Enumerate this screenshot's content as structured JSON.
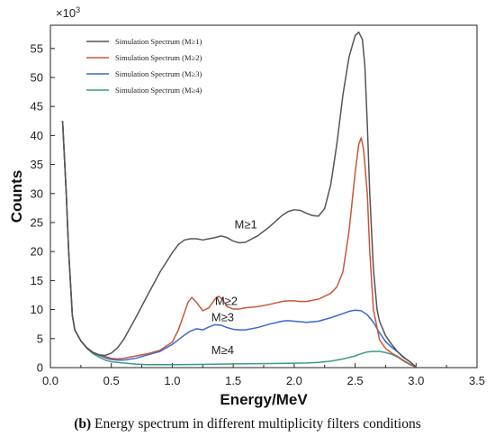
{
  "caption": {
    "label": "(b)",
    "text": " Energy spectrum in different multiplicity filters conditions"
  },
  "chart_data": {
    "type": "line",
    "xlabel": "Energy/MeV",
    "ylabel": "Counts",
    "multiplier": "×10",
    "multiplier_exp": "3",
    "xlim": [
      0,
      3.5
    ],
    "ylim": [
      0,
      59
    ],
    "x_ticks": [
      "0.0",
      "0.5",
      "1.0",
      "1.5",
      "2.0",
      "2.5",
      "3.0",
      "3.5"
    ],
    "y_ticks": [
      "0",
      "5",
      "10",
      "15",
      "20",
      "25",
      "30",
      "35",
      "40",
      "45",
      "50",
      "55"
    ],
    "legend_position": "top-left",
    "series": [
      {
        "name": "Simulation Spectrum (M≥1)",
        "color": "#555555",
        "annotation": {
          "text": "M≥1",
          "x": 1.51,
          "y": 24.0
        },
        "x": [
          0.1,
          0.13,
          0.15,
          0.18,
          0.2,
          0.25,
          0.3,
          0.35,
          0.4,
          0.45,
          0.5,
          0.55,
          0.6,
          0.7,
          0.8,
          0.9,
          1.0,
          1.05,
          1.1,
          1.15,
          1.2,
          1.25,
          1.3,
          1.35,
          1.4,
          1.45,
          1.5,
          1.55,
          1.6,
          1.7,
          1.8,
          1.9,
          1.95,
          2.0,
          2.05,
          2.1,
          2.15,
          2.2,
          2.25,
          2.3,
          2.35,
          2.4,
          2.45,
          2.5,
          2.53,
          2.56,
          2.58,
          2.6,
          2.62,
          2.65,
          2.68,
          2.7,
          2.75,
          2.8,
          2.85,
          2.9,
          2.95,
          3.0
        ],
        "y": [
          42.5,
          30,
          20,
          9,
          6.5,
          4.6,
          3.4,
          2.6,
          2.2,
          2.1,
          2.5,
          3.4,
          4.8,
          8.6,
          12.6,
          16.5,
          19.8,
          21.2,
          22,
          22.2,
          22.2,
          22,
          22.2,
          22.4,
          22.7,
          22.4,
          21.8,
          21.5,
          21.6,
          22.7,
          24.3,
          26.2,
          26.9,
          27.2,
          27.1,
          26.6,
          26.2,
          26.1,
          27.4,
          31.5,
          38.5,
          47,
          53.5,
          57.2,
          57.8,
          56.5,
          52,
          42,
          30,
          17,
          10,
          8,
          5.5,
          4,
          2.7,
          1.7,
          1,
          0.1
        ]
      },
      {
        "name": "Simulation Spectrum (M≥2)",
        "color": "#c8583a",
        "annotation": {
          "text": "M≥2",
          "x": 1.35,
          "y": 10.8
        },
        "x": [
          0.1,
          0.13,
          0.15,
          0.18,
          0.2,
          0.25,
          0.3,
          0.35,
          0.4,
          0.45,
          0.5,
          0.55,
          0.6,
          0.7,
          0.8,
          0.9,
          1.0,
          1.05,
          1.1,
          1.13,
          1.16,
          1.2,
          1.25,
          1.3,
          1.35,
          1.38,
          1.41,
          1.45,
          1.5,
          1.55,
          1.6,
          1.7,
          1.8,
          1.9,
          1.95,
          2.0,
          2.05,
          2.1,
          2.2,
          2.3,
          2.35,
          2.4,
          2.45,
          2.5,
          2.53,
          2.55,
          2.57,
          2.6,
          2.62,
          2.65,
          2.7,
          2.75,
          2.8,
          2.85,
          2.9,
          2.95,
          3.0
        ],
        "y": [
          42.5,
          30,
          20,
          9,
          6.5,
          4.6,
          3.4,
          2.6,
          2.2,
          1.9,
          1.6,
          1.5,
          1.6,
          2,
          2.4,
          3,
          4.4,
          6.5,
          9.5,
          11.3,
          12.1,
          11.2,
          9.8,
          10.3,
          11.8,
          12.3,
          11.8,
          10.5,
          10.1,
          10.1,
          10.3,
          10.5,
          10.9,
          11.4,
          11.5,
          11.5,
          11.4,
          11.4,
          11.8,
          12.8,
          13.9,
          16.5,
          23.5,
          33.5,
          38.5,
          39.6,
          37.5,
          30,
          20,
          10,
          4.8,
          3.3,
          2.5,
          1.9,
          1.2,
          0.6,
          0.1
        ]
      },
      {
        "name": "Simulation Spectrum (M≥3)",
        "color": "#3a68d4",
        "annotation": {
          "text": "M≥3",
          "x": 1.32,
          "y": 8.0
        },
        "x": [
          0.1,
          0.13,
          0.15,
          0.18,
          0.2,
          0.25,
          0.3,
          0.35,
          0.4,
          0.45,
          0.5,
          0.55,
          0.6,
          0.7,
          0.8,
          0.9,
          1.0,
          1.05,
          1.1,
          1.15,
          1.2,
          1.25,
          1.3,
          1.35,
          1.4,
          1.45,
          1.5,
          1.55,
          1.6,
          1.7,
          1.8,
          1.9,
          1.95,
          2.0,
          2.05,
          2.1,
          2.2,
          2.3,
          2.4,
          2.45,
          2.5,
          2.55,
          2.6,
          2.65,
          2.7,
          2.75,
          2.8,
          2.85,
          2.9,
          2.95,
          3.0
        ],
        "y": [
          42.5,
          30,
          20,
          9,
          6.5,
          4.6,
          3.4,
          2.6,
          2.1,
          1.7,
          1.4,
          1.3,
          1.3,
          1.6,
          2.2,
          2.8,
          4,
          4.8,
          5.6,
          6.3,
          6.7,
          6.5,
          7,
          7.4,
          7.3,
          6.9,
          6.6,
          6.5,
          6.5,
          6.9,
          7.5,
          8,
          8.1,
          8,
          7.9,
          7.8,
          8,
          8.6,
          9.3,
          9.7,
          9.9,
          9.8,
          9.1,
          7.8,
          6,
          4.5,
          3.5,
          2.7,
          1.8,
          1,
          0.1
        ]
      },
      {
        "name": "Simulation Spectrum (M≥4)",
        "color": "#3a9a88",
        "annotation": {
          "text": "M≥4",
          "x": 1.32,
          "y": 2.3
        },
        "x": [
          0.1,
          0.13,
          0.15,
          0.18,
          0.2,
          0.25,
          0.3,
          0.35,
          0.4,
          0.45,
          0.5,
          0.55,
          0.6,
          0.7,
          0.8,
          0.9,
          1.0,
          1.2,
          1.4,
          1.6,
          1.8,
          2.0,
          2.1,
          2.2,
          2.3,
          2.4,
          2.5,
          2.55,
          2.6,
          2.65,
          2.7,
          2.75,
          2.8,
          2.85,
          2.9,
          2.95,
          3.0
        ],
        "y": [
          42.5,
          30,
          20,
          9,
          6.5,
          4.6,
          3.3,
          2.4,
          1.8,
          1.3,
          1,
          0.9,
          0.8,
          0.6,
          0.5,
          0.5,
          0.5,
          0.55,
          0.6,
          0.65,
          0.7,
          0.75,
          0.8,
          0.9,
          1.1,
          1.5,
          2,
          2.4,
          2.7,
          2.8,
          2.8,
          2.6,
          2.3,
          1.8,
          1.1,
          0.5,
          0.1
        ]
      }
    ]
  }
}
